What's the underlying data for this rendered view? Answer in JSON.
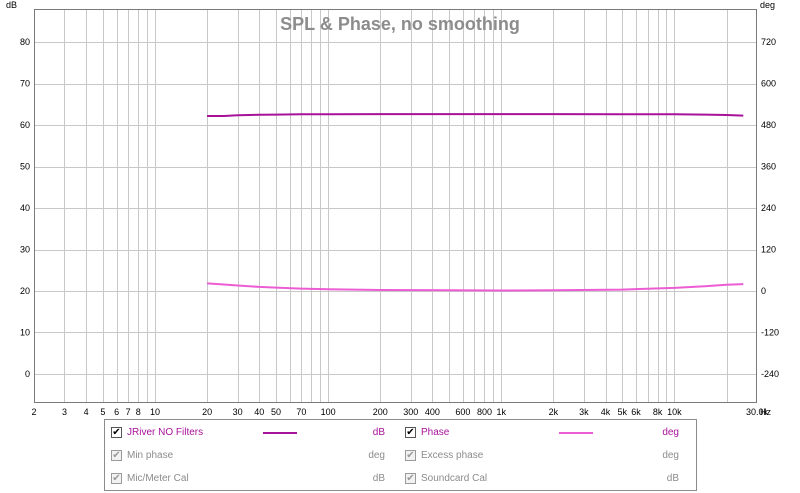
{
  "chart_data": {
    "type": "line",
    "title": "SPL & Phase, no smoothing",
    "x_scale": "log",
    "xlim": [
      2,
      30000
    ],
    "x_unit": "Hz",
    "x_ticks": [
      {
        "v": 2,
        "label": "2"
      },
      {
        "v": 3,
        "label": "3"
      },
      {
        "v": 4,
        "label": "4"
      },
      {
        "v": 5,
        "label": "5"
      },
      {
        "v": 6,
        "label": "6"
      },
      {
        "v": 7,
        "label": "7"
      },
      {
        "v": 8,
        "label": "8"
      },
      {
        "v": 10,
        "label": "10"
      },
      {
        "v": 20,
        "label": "20"
      },
      {
        "v": 30,
        "label": "30"
      },
      {
        "v": 40,
        "label": "40"
      },
      {
        "v": 50,
        "label": "50"
      },
      {
        "v": 70,
        "label": "70"
      },
      {
        "v": 100,
        "label": "100"
      },
      {
        "v": 200,
        "label": "200"
      },
      {
        "v": 300,
        "label": "300"
      },
      {
        "v": 400,
        "label": "400"
      },
      {
        "v": 600,
        "label": "600"
      },
      {
        "v": 800,
        "label": "800"
      },
      {
        "v": 1000,
        "label": "1k"
      },
      {
        "v": 2000,
        "label": "2k"
      },
      {
        "v": 3000,
        "label": "3k"
      },
      {
        "v": 4000,
        "label": "4k"
      },
      {
        "v": 5000,
        "label": "5k"
      },
      {
        "v": 6000,
        "label": "6k"
      },
      {
        "v": 8000,
        "label": "8k"
      },
      {
        "v": 10000,
        "label": "10k"
      },
      {
        "v": 30000,
        "label": "30.0k"
      }
    ],
    "x_grid": [
      2,
      3,
      4,
      5,
      6,
      7,
      8,
      9,
      10,
      20,
      30,
      40,
      50,
      60,
      70,
      80,
      90,
      100,
      200,
      300,
      400,
      500,
      600,
      700,
      800,
      900,
      1000,
      2000,
      3000,
      4000,
      5000,
      6000,
      7000,
      8000,
      9000,
      10000,
      20000
    ],
    "y_left": {
      "unit": "dB",
      "ylim": [
        -7,
        88
      ],
      "ticks": [
        0,
        10,
        20,
        30,
        40,
        50,
        60,
        70,
        80
      ]
    },
    "y_right": {
      "unit": "deg",
      "ylim": [
        -324,
        816
      ],
      "ticks": [
        -240,
        -120,
        0,
        120,
        240,
        360,
        480,
        600,
        720
      ]
    },
    "grid": true,
    "series": [
      {
        "name": "JRiver NO Filters",
        "axis": "left",
        "color": "#a8129a",
        "x": [
          20,
          25,
          30,
          40,
          50,
          70,
          100,
          200,
          500,
          1000,
          2000,
          5000,
          10000,
          15000,
          20000,
          25000
        ],
        "y": [
          62.2,
          62.2,
          62.4,
          62.5,
          62.55,
          62.6,
          62.6,
          62.65,
          62.65,
          62.65,
          62.65,
          62.6,
          62.6,
          62.55,
          62.45,
          62.3
        ]
      },
      {
        "name": "Phase",
        "axis": "right",
        "color": "#ec5dd3",
        "x": [
          20,
          25,
          30,
          40,
          50,
          70,
          100,
          200,
          500,
          1000,
          2000,
          5000,
          10000,
          15000,
          20000,
          25000
        ],
        "y": [
          22,
          19,
          16,
          12,
          10,
          7,
          5,
          3,
          2,
          1.5,
          2,
          4,
          9,
          14,
          18,
          20
        ]
      }
    ]
  },
  "legend": {
    "items": [
      {
        "label": "JRiver NO Filters",
        "unit": "dB",
        "checked": "✔",
        "active": true,
        "color": "#a8129a"
      },
      {
        "label": "Phase",
        "unit": "deg",
        "checked": "✔",
        "active": true,
        "color": "#ec5dd3"
      },
      {
        "label": "Min phase",
        "unit": "deg",
        "checked": "✔",
        "active": false
      },
      {
        "label": "Excess phase",
        "unit": "deg",
        "checked": "✔",
        "active": false
      },
      {
        "label": "Mic/Meter Cal",
        "unit": "dB",
        "checked": "✔",
        "active": false
      },
      {
        "label": "Soundcard Cal",
        "unit": "dB",
        "checked": "✔",
        "active": false
      }
    ]
  }
}
